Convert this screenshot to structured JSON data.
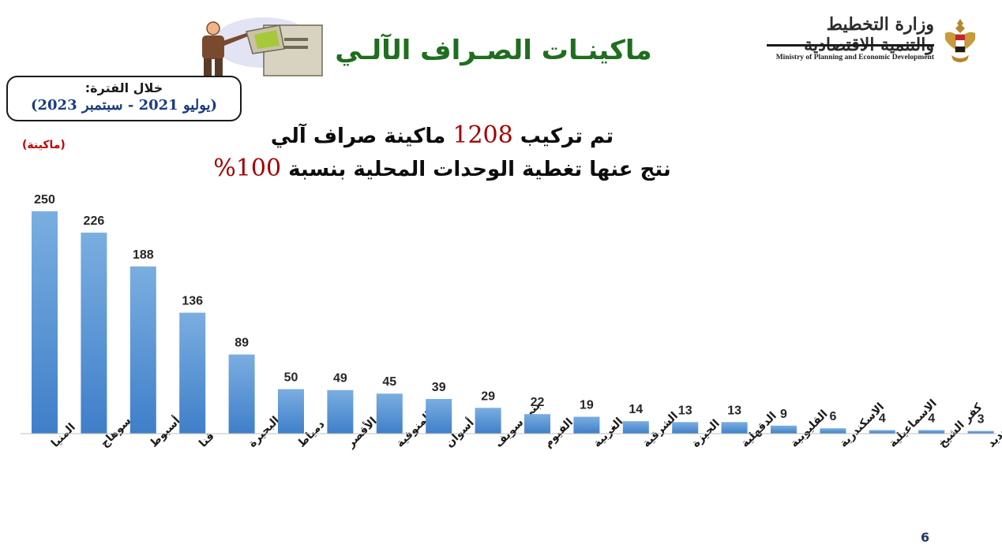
{
  "header": {
    "ministry_ar": "وزارة التخطيط والتنمية الاقتصادية",
    "ministry_en": "Ministry of Planning and Economic Development",
    "title": "ماكينـات الصـراف الآلـي"
  },
  "period": {
    "label": "خلال الفترة:",
    "value": "(يوليو 2021 - سبتمبر 2023)"
  },
  "unit_label": "(ماكينة)",
  "headline": {
    "line1_before": "تم تركيب",
    "line1_number": "1208",
    "line1_after": "ماكينة صراف آلي",
    "line2_before": "نتج عنها تغطية الوحدات المحلية بنسبة",
    "line2_number": "100%"
  },
  "page_number": "6",
  "colors": {
    "bar_top": "#7aaee0",
    "bar_bottom": "#3f7fc9",
    "title": "#1f6e1f",
    "accent_red": "#a30000"
  },
  "chart_data": {
    "type": "bar",
    "categories": [
      "المنيا",
      "سوهاج",
      "أسيوط",
      "قنا",
      "البحيرة",
      "دمياط",
      "الأقصر",
      "المنوفية",
      "أسوان",
      "بني سويف",
      "الفيوم",
      "الغربية",
      "الشرقية",
      "الجيزة",
      "الدقهلية",
      "القليوبية",
      "الاسكندرية",
      "الاسماعيلية",
      "كفر الشيخ",
      "الوادى الجديد"
    ],
    "values": [
      250,
      226,
      188,
      136,
      89,
      50,
      49,
      45,
      39,
      29,
      22,
      19,
      14,
      13,
      13,
      9,
      6,
      4,
      4,
      3
    ],
    "ylim": [
      0,
      250
    ],
    "grid": false,
    "data_labels": true
  }
}
